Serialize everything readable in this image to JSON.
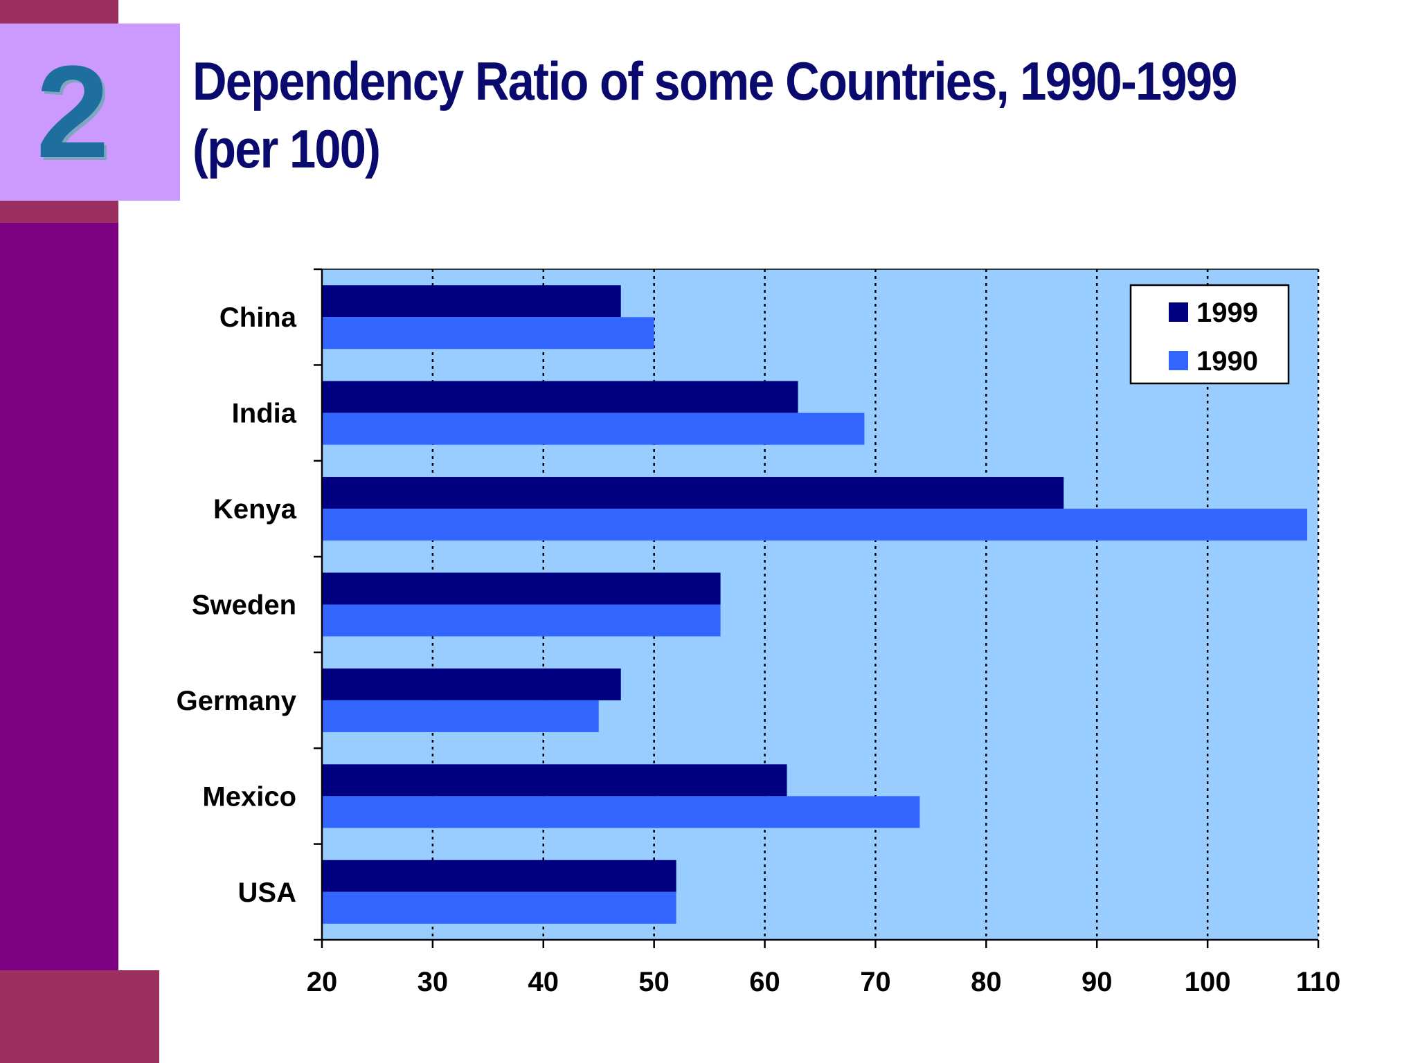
{
  "slide": {
    "number": "2",
    "title": "Dependency Ratio of some Countries, 1990-1999 (per 100)"
  },
  "colors": {
    "sidebar": "#7b0082",
    "accent_bands": "#9b3060",
    "number_box": "#cc99ff",
    "title": "#0a0a6e",
    "plot_bg": "#99ccff",
    "series_1999": "#000080",
    "series_1990": "#3366ff"
  },
  "chart_data": {
    "type": "bar",
    "orientation": "horizontal",
    "categories": [
      "China",
      "India",
      "Kenya",
      "Sweden",
      "Germany",
      "Mexico",
      "USA"
    ],
    "series": [
      {
        "name": "1999",
        "color": "#000080",
        "values": [
          47,
          63,
          87,
          56,
          47,
          62,
          52
        ]
      },
      {
        "name": "1990",
        "color": "#3366ff",
        "values": [
          50,
          69,
          109,
          56,
          45,
          74,
          52
        ]
      }
    ],
    "xlim": [
      20,
      110
    ],
    "xticks": [
      "20",
      "30",
      "40",
      "50",
      "60",
      "70",
      "80",
      "90",
      "100",
      "110"
    ],
    "grid": "vertical dotted",
    "legend_position": "top-right"
  }
}
